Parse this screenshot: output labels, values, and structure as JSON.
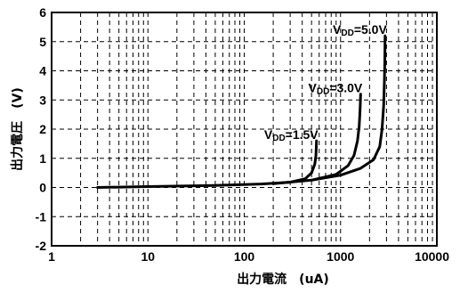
{
  "chart_data": {
    "type": "line",
    "title": "",
    "xlabel": "出力電流　(uA)",
    "ylabel": "出力電圧　(V)",
    "x_scale": "log",
    "xlim": [
      1,
      10000
    ],
    "ylim": [
      -2,
      6
    ],
    "grid": true,
    "x_tick_labels": [
      "1",
      "10",
      "100",
      "1000",
      "10000"
    ],
    "x_tick_values": [
      1,
      10,
      100,
      1000,
      10000
    ],
    "y_tick_labels": [
      "-2",
      "-1",
      "0",
      "1",
      "2",
      "3",
      "4",
      "5",
      "6"
    ],
    "y_tick_values": [
      -2,
      -1,
      0,
      1,
      2,
      3,
      4,
      5,
      6
    ],
    "series": [
      {
        "name": "V_DD=1.5V",
        "label_main": "V",
        "label_sub": "DD",
        "label_rest": "=1.5V",
        "x": [
          3,
          10,
          50,
          150,
          300,
          430,
          500,
          540,
          555,
          560,
          562
        ],
        "y": [
          0.0,
          0.03,
          0.07,
          0.12,
          0.18,
          0.3,
          0.5,
          0.8,
          1.1,
          1.4,
          1.6
        ]
      },
      {
        "name": "V_DD=3.0V",
        "label_main": "V",
        "label_sub": "DD",
        "label_rest": "=3.0V",
        "x": [
          200,
          500,
          900,
          1200,
          1380,
          1500,
          1560,
          1590,
          1605,
          1612,
          1615
        ],
        "y": [
          0.13,
          0.25,
          0.45,
          0.75,
          1.1,
          1.6,
          2.1,
          2.6,
          2.9,
          3.1,
          3.2
        ]
      },
      {
        "name": "V_DD=5.0V",
        "label_main": "V",
        "label_sub": "DD",
        "label_rest": "=5.0V",
        "x": [
          500,
          1000,
          1600,
          2200,
          2550,
          2700,
          2800,
          2850,
          2880,
          2895,
          2900
        ],
        "y": [
          0.25,
          0.42,
          0.65,
          0.95,
          1.4,
          2.0,
          2.8,
          3.6,
          4.3,
          4.9,
          5.2
        ]
      }
    ]
  }
}
